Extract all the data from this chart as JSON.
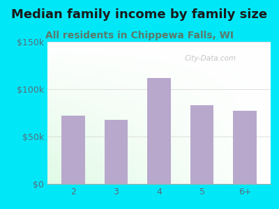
{
  "title": "Median family income by family size",
  "subtitle": "All residents in Chippewa Falls, WI",
  "categories": [
    "2",
    "3",
    "4",
    "5",
    "6+"
  ],
  "values": [
    72000,
    68000,
    112000,
    83000,
    77000
  ],
  "bar_color": "#b8a8cc",
  "background_outer": "#00e8f8",
  "title_color": "#1a1a1a",
  "subtitle_color": "#5a7a6a",
  "tick_color": "#5a6a7a",
  "ylim": [
    0,
    150000
  ],
  "yticks": [
    0,
    50000,
    100000,
    150000
  ],
  "ytick_labels": [
    "$0",
    "$50k",
    "$100k",
    "$150k"
  ],
  "watermark": "City-Data.com",
  "title_fontsize": 13,
  "subtitle_fontsize": 10,
  "grid_color": "#cccccc"
}
